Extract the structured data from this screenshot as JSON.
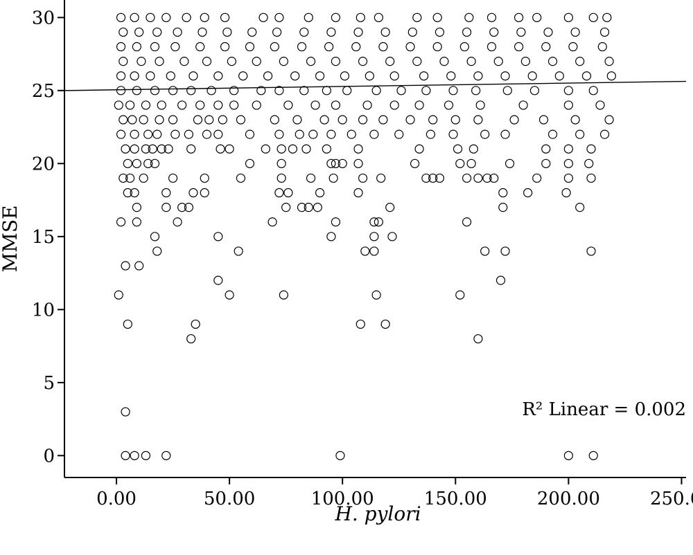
{
  "chart_data": {
    "type": "scatter",
    "title": "",
    "xlabel": "H. pylori",
    "ylabel": "MMSE",
    "xlim": [
      -23,
      252
    ],
    "ylim": [
      -1.5,
      31.2
    ],
    "x_ticks": [
      0,
      50,
      100,
      150,
      200,
      250
    ],
    "x_tick_labels": [
      "0.00",
      "50.00",
      "100.00",
      "150.00",
      "200.00",
      "250.00"
    ],
    "y_ticks": [
      0,
      5,
      10,
      15,
      20,
      25,
      30
    ],
    "y_tick_labels": [
      "0",
      "5",
      "10",
      "15",
      "20",
      "25",
      "30"
    ],
    "grid": false,
    "fit_line": {
      "intercept": 25.05,
      "slope": 0.0023
    },
    "annotation": "R² Linear = 0.002",
    "series": [
      {
        "points": [
          [
            1,
            11
          ],
          [
            2,
            16
          ],
          [
            4,
            13
          ],
          [
            5,
            9
          ],
          [
            4,
            3
          ],
          [
            4,
            0
          ],
          [
            8,
            0
          ],
          [
            13,
            0
          ],
          [
            22,
            0
          ],
          [
            99,
            0
          ],
          [
            200,
            0
          ],
          [
            211,
            0
          ],
          [
            9,
            17
          ],
          [
            9,
            16
          ],
          [
            10,
            13
          ],
          [
            17,
            15
          ],
          [
            18,
            14
          ],
          [
            22,
            17
          ],
          [
            27,
            16
          ],
          [
            29,
            17
          ],
          [
            32,
            17
          ],
          [
            33,
            8
          ],
          [
            35,
            9
          ],
          [
            45,
            15
          ],
          [
            45,
            12
          ],
          [
            50,
            11
          ],
          [
            54,
            14
          ],
          [
            74,
            11
          ],
          [
            69,
            16
          ],
          [
            75,
            17
          ],
          [
            95,
            15
          ],
          [
            97,
            16
          ],
          [
            108,
            9
          ],
          [
            110,
            14
          ],
          [
            114,
            15
          ],
          [
            114,
            14
          ],
          [
            115,
            11
          ],
          [
            119,
            9
          ],
          [
            121,
            17
          ],
          [
            122,
            15
          ],
          [
            114,
            16
          ],
          [
            116,
            16
          ],
          [
            152,
            11
          ],
          [
            155,
            16
          ],
          [
            160,
            8
          ],
          [
            163,
            14
          ],
          [
            170,
            12
          ],
          [
            171,
            17
          ],
          [
            172,
            14
          ],
          [
            205,
            17
          ],
          [
            210,
            14
          ],
          [
            171,
            18
          ],
          [
            182,
            18
          ],
          [
            199,
            18
          ],
          [
            5,
            18
          ],
          [
            8,
            18
          ],
          [
            22,
            18
          ],
          [
            34,
            18
          ],
          [
            39,
            18
          ],
          [
            72,
            18
          ],
          [
            76,
            18
          ],
          [
            90,
            18
          ],
          [
            107,
            18
          ],
          [
            82,
            17
          ],
          [
            85,
            17
          ],
          [
            89,
            17
          ],
          [
            3,
            19
          ],
          [
            6,
            19
          ],
          [
            12,
            19
          ],
          [
            25,
            19
          ],
          [
            39,
            19
          ],
          [
            55,
            19
          ],
          [
            73,
            19
          ],
          [
            86,
            19
          ],
          [
            96,
            19
          ],
          [
            109,
            19
          ],
          [
            117,
            19
          ],
          [
            137,
            19
          ],
          [
            140,
            19
          ],
          [
            143,
            19
          ],
          [
            155,
            19
          ],
          [
            160,
            19
          ],
          [
            164,
            19
          ],
          [
            167,
            19
          ],
          [
            186,
            19
          ],
          [
            200,
            19
          ],
          [
            210,
            19
          ],
          [
            5,
            20
          ],
          [
            9,
            20
          ],
          [
            14,
            20
          ],
          [
            17,
            20
          ],
          [
            59,
            20
          ],
          [
            73,
            20
          ],
          [
            95,
            20
          ],
          [
            97,
            20
          ],
          [
            100,
            20
          ],
          [
            107,
            20
          ],
          [
            132,
            20
          ],
          [
            152,
            20
          ],
          [
            157,
            20
          ],
          [
            174,
            20
          ],
          [
            190,
            20
          ],
          [
            200,
            20
          ],
          [
            209,
            20
          ],
          [
            4,
            21
          ],
          [
            8,
            21
          ],
          [
            13,
            21
          ],
          [
            16,
            21
          ],
          [
            20,
            21
          ],
          [
            23,
            21
          ],
          [
            33,
            21
          ],
          [
            46,
            21
          ],
          [
            50,
            21
          ],
          [
            66,
            21
          ],
          [
            73,
            21
          ],
          [
            78,
            21
          ],
          [
            84,
            21
          ],
          [
            93,
            21
          ],
          [
            107,
            21
          ],
          [
            134,
            21
          ],
          [
            151,
            21
          ],
          [
            158,
            21
          ],
          [
            190,
            21
          ],
          [
            200,
            21
          ],
          [
            210,
            21
          ],
          [
            2,
            22
          ],
          [
            8,
            22
          ],
          [
            14,
            22
          ],
          [
            18,
            22
          ],
          [
            26,
            22
          ],
          [
            32,
            22
          ],
          [
            40,
            22
          ],
          [
            45,
            22
          ],
          [
            59,
            22
          ],
          [
            72,
            22
          ],
          [
            81,
            22
          ],
          [
            87,
            22
          ],
          [
            95,
            22
          ],
          [
            104,
            22
          ],
          [
            114,
            22
          ],
          [
            125,
            22
          ],
          [
            139,
            22
          ],
          [
            149,
            22
          ],
          [
            163,
            22
          ],
          [
            172,
            22
          ],
          [
            193,
            22
          ],
          [
            205,
            22
          ],
          [
            216,
            22
          ],
          [
            3,
            23
          ],
          [
            7,
            23
          ],
          [
            12,
            23
          ],
          [
            19,
            23
          ],
          [
            25,
            23
          ],
          [
            36,
            23
          ],
          [
            41,
            23
          ],
          [
            47,
            23
          ],
          [
            55,
            23
          ],
          [
            70,
            23
          ],
          [
            80,
            23
          ],
          [
            92,
            23
          ],
          [
            100,
            23
          ],
          [
            109,
            23
          ],
          [
            118,
            23
          ],
          [
            130,
            23
          ],
          [
            140,
            23
          ],
          [
            150,
            23
          ],
          [
            160,
            23
          ],
          [
            176,
            23
          ],
          [
            189,
            23
          ],
          [
            203,
            23
          ],
          [
            218,
            23
          ],
          [
            1,
            24
          ],
          [
            6,
            24
          ],
          [
            13,
            24
          ],
          [
            20,
            24
          ],
          [
            29,
            24
          ],
          [
            37,
            24
          ],
          [
            45,
            24
          ],
          [
            52,
            24
          ],
          [
            62,
            24
          ],
          [
            76,
            24
          ],
          [
            88,
            24
          ],
          [
            97,
            24
          ],
          [
            111,
            24
          ],
          [
            123,
            24
          ],
          [
            134,
            24
          ],
          [
            147,
            24
          ],
          [
            161,
            24
          ],
          [
            180,
            24
          ],
          [
            200,
            24
          ],
          [
            214,
            24
          ],
          [
            2,
            25
          ],
          [
            9,
            25
          ],
          [
            17,
            25
          ],
          [
            25,
            25
          ],
          [
            33,
            25
          ],
          [
            42,
            25
          ],
          [
            52,
            25
          ],
          [
            64,
            25
          ],
          [
            72,
            25
          ],
          [
            83,
            25
          ],
          [
            93,
            25
          ],
          [
            102,
            25
          ],
          [
            115,
            25
          ],
          [
            126,
            25
          ],
          [
            137,
            25
          ],
          [
            149,
            25
          ],
          [
            159,
            25
          ],
          [
            173,
            25
          ],
          [
            185,
            25
          ],
          [
            200,
            25
          ],
          [
            211,
            25
          ],
          [
            2,
            26
          ],
          [
            8,
            26
          ],
          [
            15,
            26
          ],
          [
            24,
            26
          ],
          [
            34,
            26
          ],
          [
            45,
            26
          ],
          [
            56,
            26
          ],
          [
            67,
            26
          ],
          [
            79,
            26
          ],
          [
            90,
            26
          ],
          [
            101,
            26
          ],
          [
            112,
            26
          ],
          [
            123,
            26
          ],
          [
            136,
            26
          ],
          [
            148,
            26
          ],
          [
            160,
            26
          ],
          [
            172,
            26
          ],
          [
            184,
            26
          ],
          [
            196,
            26
          ],
          [
            208,
            26
          ],
          [
            219,
            26
          ],
          [
            3,
            27
          ],
          [
            11,
            27
          ],
          [
            19,
            27
          ],
          [
            30,
            27
          ],
          [
            40,
            27
          ],
          [
            51,
            27
          ],
          [
            62,
            27
          ],
          [
            74,
            27
          ],
          [
            86,
            27
          ],
          [
            97,
            27
          ],
          [
            109,
            27
          ],
          [
            121,
            27
          ],
          [
            133,
            27
          ],
          [
            145,
            27
          ],
          [
            157,
            27
          ],
          [
            169,
            27
          ],
          [
            181,
            27
          ],
          [
            193,
            27
          ],
          [
            205,
            27
          ],
          [
            218,
            27
          ],
          [
            2,
            28
          ],
          [
            9,
            28
          ],
          [
            17,
            28
          ],
          [
            26,
            28
          ],
          [
            37,
            28
          ],
          [
            48,
            28
          ],
          [
            59,
            28
          ],
          [
            70,
            28
          ],
          [
            82,
            28
          ],
          [
            94,
            28
          ],
          [
            106,
            28
          ],
          [
            118,
            28
          ],
          [
            130,
            28
          ],
          [
            142,
            28
          ],
          [
            154,
            28
          ],
          [
            166,
            28
          ],
          [
            178,
            28
          ],
          [
            190,
            28
          ],
          [
            202,
            28
          ],
          [
            215,
            28
          ],
          [
            3,
            29
          ],
          [
            10,
            29
          ],
          [
            18,
            29
          ],
          [
            27,
            29
          ],
          [
            38,
            29
          ],
          [
            49,
            29
          ],
          [
            60,
            29
          ],
          [
            71,
            29
          ],
          [
            83,
            29
          ],
          [
            95,
            29
          ],
          [
            107,
            29
          ],
          [
            119,
            29
          ],
          [
            131,
            29
          ],
          [
            143,
            29
          ],
          [
            155,
            29
          ],
          [
            167,
            29
          ],
          [
            179,
            29
          ],
          [
            191,
            29
          ],
          [
            203,
            29
          ],
          [
            216,
            29
          ],
          [
            2,
            30
          ],
          [
            8,
            30
          ],
          [
            15,
            30
          ],
          [
            22,
            30
          ],
          [
            31,
            30
          ],
          [
            39,
            30
          ],
          [
            48,
            30
          ],
          [
            65,
            30
          ],
          [
            72,
            30
          ],
          [
            85,
            30
          ],
          [
            97,
            30
          ],
          [
            108,
            30
          ],
          [
            116,
            30
          ],
          [
            133,
            30
          ],
          [
            142,
            30
          ],
          [
            156,
            30
          ],
          [
            166,
            30
          ],
          [
            178,
            30
          ],
          [
            186,
            30
          ],
          [
            200,
            30
          ],
          [
            211,
            30
          ],
          [
            217,
            30
          ]
        ]
      }
    ]
  }
}
